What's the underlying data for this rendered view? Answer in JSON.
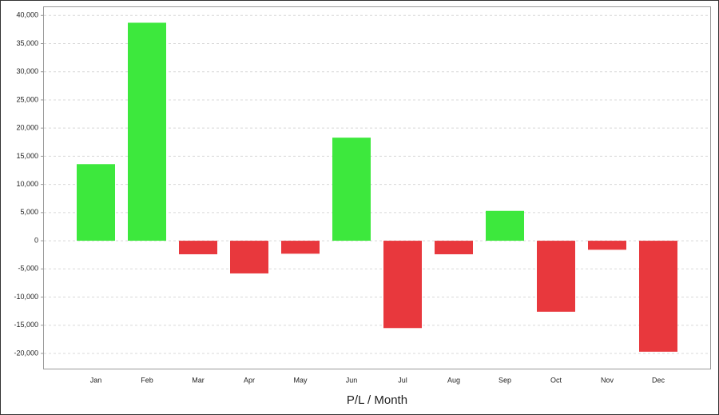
{
  "chart_data": {
    "type": "bar",
    "x_label": "P/L / Month",
    "categories": [
      "Jan",
      "Feb",
      "Mar",
      "Apr",
      "May",
      "Jun",
      "Jul",
      "Aug",
      "Sep",
      "Oct",
      "Nov",
      "Dec"
    ],
    "values": [
      13600,
      38700,
      -2400,
      -5800,
      -2300,
      18300,
      -15500,
      -2400,
      5300,
      -12600,
      -1600,
      -19700
    ],
    "positive_color": "#3de83d",
    "negative_color": "#e8383d",
    "ylim": [
      -22700,
      41600
    ],
    "yticks": [
      {
        "value": -20000,
        "label": "-20,000"
      },
      {
        "value": -15000,
        "label": "-15,000"
      },
      {
        "value": -10000,
        "label": "-10,000"
      },
      {
        "value": -5000,
        "label": "-5,000"
      },
      0,
      {
        "value": 5000,
        "label": "5,000"
      },
      {
        "value": 10000,
        "label": "10,000"
      },
      {
        "value": 15000,
        "label": "15,000"
      },
      {
        "value": 20000,
        "label": "20,000"
      },
      {
        "value": 25000,
        "label": "25,000"
      },
      {
        "value": 30000,
        "label": "30,000"
      },
      {
        "value": 35000,
        "label": "35,000"
      },
      {
        "value": 40000,
        "label": "40,000"
      }
    ],
    "grid": true
  }
}
